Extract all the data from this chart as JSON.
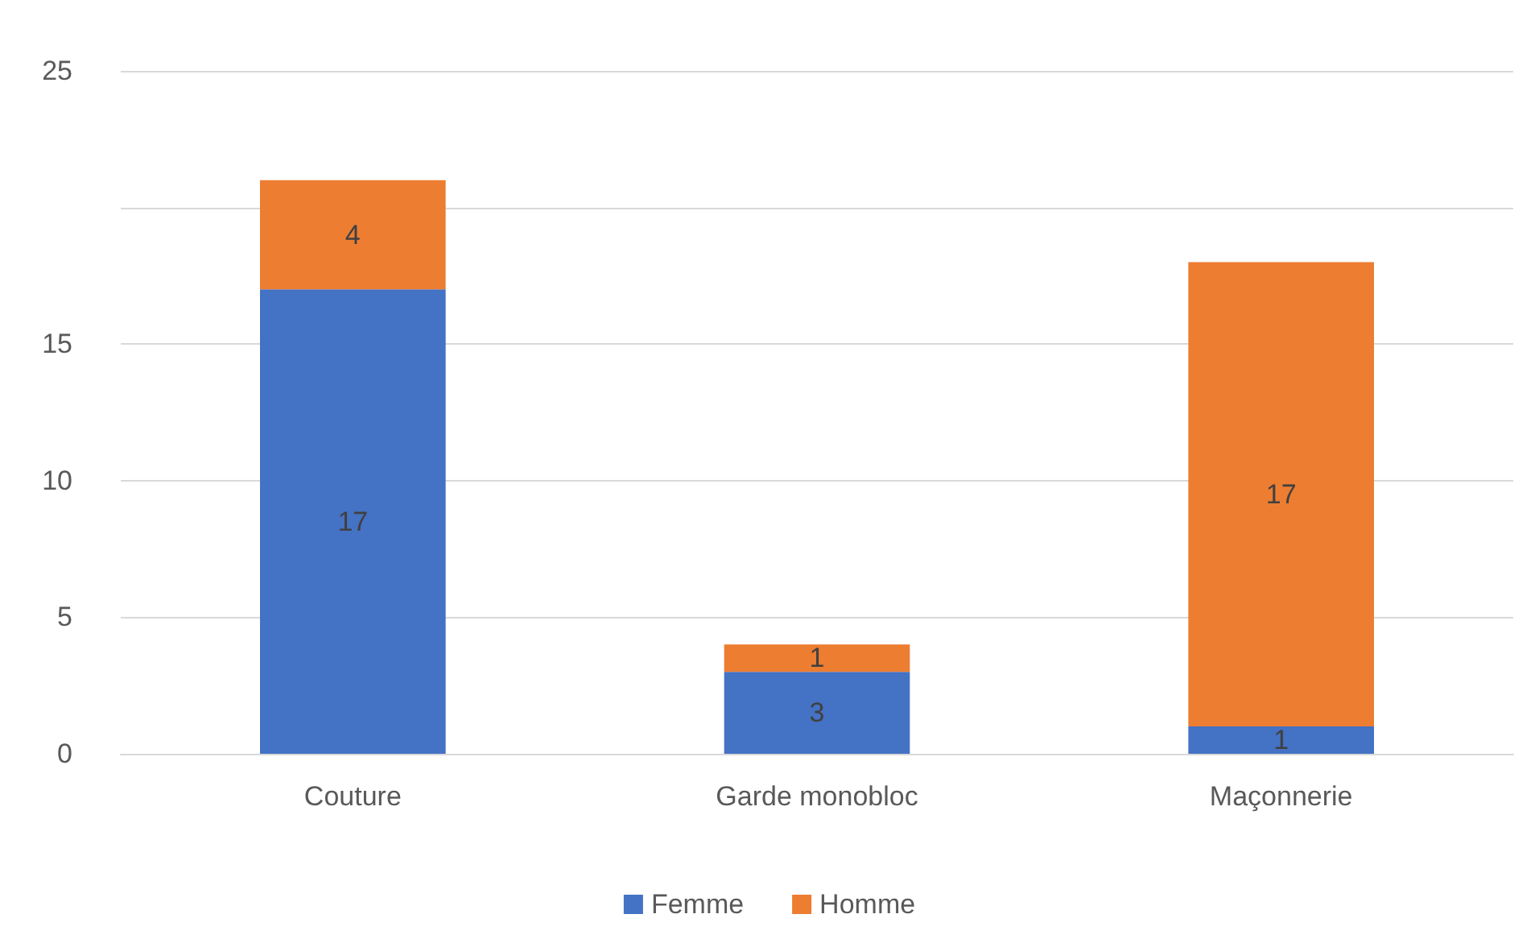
{
  "chart_data": {
    "type": "bar",
    "stacked": true,
    "categories": [
      "Couture",
      "Garde monobloc",
      "Maçonnerie"
    ],
    "series": [
      {
        "name": "Femme",
        "color": "#4472c4",
        "values": [
          17,
          3,
          1
        ]
      },
      {
        "name": "Homme",
        "color": "#ed7d31",
        "values": [
          4,
          1,
          17
        ]
      }
    ],
    "ylim": [
      0,
      25
    ],
    "yticks": [
      0,
      5,
      10,
      15,
      {
        "value": 20,
        "label": null
      },
      25
    ],
    "grid": "y",
    "legend": "bottom",
    "data_labels": true
  }
}
